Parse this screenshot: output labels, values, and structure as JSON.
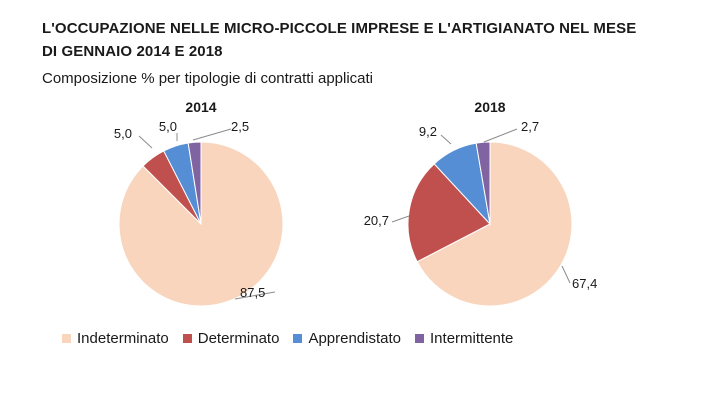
{
  "header": {
    "title_line1": "L'OCCUPAZIONE NELLE MICRO-PICCOLE IMPRESE E L'ARTIGIANATO NEL MESE",
    "title_line2": "DI GENNAIO 2014 E 2018",
    "subtitle": "Composizione % per tipologie di contratti applicati"
  },
  "chart_data": [
    {
      "type": "pie",
      "title": "2014",
      "categories": [
        "Indeterminato",
        "Determinato",
        "Apprendistato",
        "Intermittente"
      ],
      "values": [
        87.5,
        5.0,
        5.0,
        2.5
      ],
      "labels": [
        "87,5",
        "5,0",
        "5,0",
        "2,5"
      ],
      "colors": [
        "#F9D5BD",
        "#C0504D",
        "#558ED5",
        "#8064A2"
      ],
      "legend": "bottom"
    },
    {
      "type": "pie",
      "title": "2018",
      "categories": [
        "Indeterminato",
        "Determinato",
        "Apprendistato",
        "Intermittente"
      ],
      "values": [
        67.4,
        20.7,
        9.2,
        2.7
      ],
      "labels": [
        "67,4",
        "20,7",
        "9,2",
        "2,7"
      ],
      "colors": [
        "#F9D5BD",
        "#C0504D",
        "#558ED5",
        "#8064A2"
      ],
      "legend": "bottom"
    }
  ],
  "legend": [
    {
      "label": "Indeterminato",
      "color": "#F9D5BD"
    },
    {
      "label": "Determinato",
      "color": "#C0504D"
    },
    {
      "label": "Apprendistato",
      "color": "#558ED5"
    },
    {
      "label": "Intermittente",
      "color": "#8064A2"
    }
  ]
}
